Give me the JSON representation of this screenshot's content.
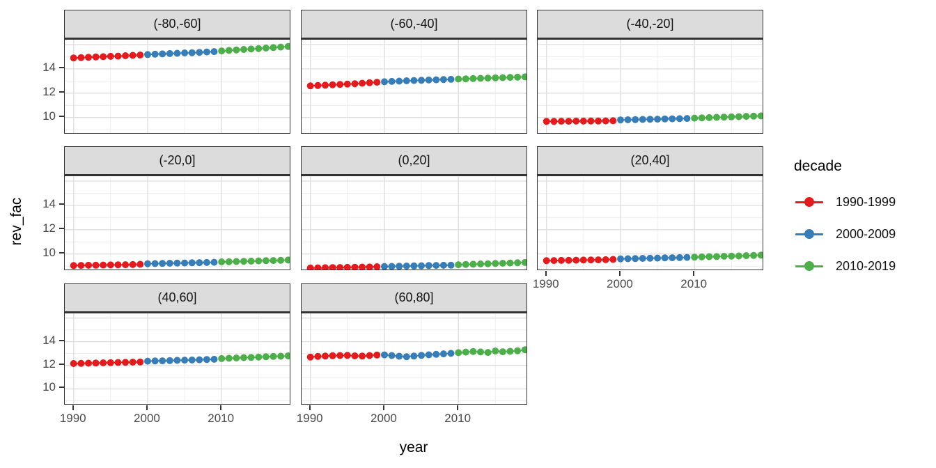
{
  "figure": {
    "xlabel": "year",
    "ylabel": "rev_fac",
    "x_ticks": [
      "1990",
      "2000",
      "2010"
    ],
    "y_ticks": [
      "14",
      "12",
      "10"
    ],
    "x_tick_values": [
      1990,
      2000,
      2010
    ],
    "y_tick_values": [
      14,
      12,
      10
    ],
    "x_gridlines_major": [
      1990,
      2000,
      2010
    ],
    "x_gridlines_minor": [
      1995,
      2005,
      2015
    ],
    "y_gridlines_major": [
      10,
      12,
      14,
      16
    ],
    "y_gridlines_minor": [
      9,
      11,
      13,
      15
    ],
    "xlim": [
      1988.8,
      2019.4
    ],
    "ylim": [
      8.55,
      16.4
    ],
    "grid": "on",
    "colors": {
      "strip_background": "#DCDCDC",
      "panel_border": "#333333",
      "grid_major": "#DEDEDE",
      "grid_minor": "#ECECEC",
      "tick_text": "#4a4a4a"
    }
  },
  "legend": {
    "title": "decade",
    "position": "right",
    "entries": [
      {
        "label": "1990-1999",
        "color": "#E41A1C"
      },
      {
        "label": "2000-2009",
        "color": "#377EB8"
      },
      {
        "label": "2010-2019",
        "color": "#4DAF4A"
      }
    ]
  },
  "chart_data": {
    "type": "scatter",
    "title": "",
    "xlabel": "year",
    "ylabel": "rev_fac",
    "x": [
      1990,
      1991,
      1992,
      1993,
      1994,
      1995,
      1996,
      1997,
      1998,
      1999,
      2000,
      2001,
      2002,
      2003,
      2004,
      2005,
      2006,
      2007,
      2008,
      2009,
      2010,
      2011,
      2012,
      2013,
      2014,
      2015,
      2016,
      2017,
      2018,
      2019
    ],
    "series_groups": [
      {
        "name": "1990-1999",
        "color": "#E41A1C",
        "start": 1990,
        "end": 1999
      },
      {
        "name": "2000-2009",
        "color": "#377EB8",
        "start": 2000,
        "end": 2009
      },
      {
        "name": "2010-2019",
        "color": "#4DAF4A",
        "start": 2010,
        "end": 2019
      }
    ],
    "facets": [
      {
        "label": "(-80,-60]",
        "values": [
          14.9,
          14.93,
          14.95,
          14.98,
          15.0,
          15.03,
          15.05,
          15.08,
          15.11,
          15.14,
          15.18,
          15.21,
          15.23,
          15.26,
          15.28,
          15.31,
          15.33,
          15.36,
          15.39,
          15.42,
          15.48,
          15.52,
          15.56,
          15.6,
          15.63,
          15.67,
          15.71,
          15.75,
          15.79,
          15.84
        ]
      },
      {
        "label": "(-60,-40]",
        "values": [
          12.6,
          12.63,
          12.66,
          12.69,
          12.72,
          12.75,
          12.78,
          12.82,
          12.86,
          12.9,
          12.94,
          12.97,
          12.99,
          13.02,
          13.04,
          13.06,
          13.08,
          13.1,
          13.12,
          13.14,
          13.16,
          13.18,
          13.2,
          13.22,
          13.24,
          13.26,
          13.28,
          13.3,
          13.32,
          13.34
        ]
      },
      {
        "label": "(-40,-20]",
        "values": [
          9.68,
          9.68,
          9.69,
          9.69,
          9.7,
          9.7,
          9.71,
          9.71,
          9.72,
          9.73,
          9.8,
          9.81,
          9.82,
          9.84,
          9.85,
          9.86,
          9.88,
          9.89,
          9.9,
          9.92,
          9.95,
          9.97,
          9.99,
          10.01,
          10.03,
          10.05,
          10.07,
          10.09,
          10.11,
          10.13
        ]
      },
      {
        "label": "(-20,0]",
        "values": [
          9.05,
          9.06,
          9.07,
          9.08,
          9.09,
          9.1,
          9.11,
          9.12,
          9.13,
          9.15,
          9.2,
          9.21,
          9.22,
          9.24,
          9.25,
          9.26,
          9.28,
          9.29,
          9.3,
          9.32,
          9.35,
          9.36,
          9.38,
          9.4,
          9.41,
          9.43,
          9.45,
          9.46,
          9.48,
          9.5
        ]
      },
      {
        "label": "(0,20]",
        "values": [
          8.85,
          8.86,
          8.87,
          8.88,
          8.89,
          8.9,
          8.91,
          8.92,
          8.93,
          8.95,
          8.97,
          8.98,
          8.99,
          9.01,
          9.02,
          9.03,
          9.05,
          9.06,
          9.07,
          9.08,
          9.12,
          9.14,
          9.16,
          9.18,
          9.2,
          9.22,
          9.24,
          9.26,
          9.28,
          9.3
        ]
      },
      {
        "label": "(20,40]",
        "values": [
          9.45,
          9.46,
          9.47,
          9.48,
          9.49,
          9.5,
          9.51,
          9.52,
          9.53,
          9.55,
          9.6,
          9.61,
          9.62,
          9.64,
          9.65,
          9.66,
          9.68,
          9.69,
          9.7,
          9.72,
          9.74,
          9.76,
          9.78,
          9.79,
          9.81,
          9.83,
          9.84,
          9.86,
          9.88,
          9.9
        ]
      },
      {
        "label": "(40,60]",
        "values": [
          12.15,
          12.16,
          12.18,
          12.19,
          12.21,
          12.22,
          12.24,
          12.25,
          12.27,
          12.28,
          12.35,
          12.37,
          12.38,
          12.4,
          12.42,
          12.44,
          12.45,
          12.47,
          12.49,
          12.51,
          12.57,
          12.6,
          12.62,
          12.65,
          12.67,
          12.7,
          12.72,
          12.75,
          12.77,
          12.8
        ]
      },
      {
        "label": "(60,80]",
        "values": [
          12.7,
          12.75,
          12.78,
          12.81,
          12.83,
          12.84,
          12.8,
          12.78,
          12.83,
          12.87,
          12.88,
          12.83,
          12.77,
          12.73,
          12.78,
          12.84,
          12.89,
          12.93,
          12.97,
          13.01,
          13.07,
          13.12,
          13.17,
          13.13,
          13.09,
          13.21,
          13.15,
          13.19,
          13.23,
          13.32
        ]
      }
    ]
  }
}
